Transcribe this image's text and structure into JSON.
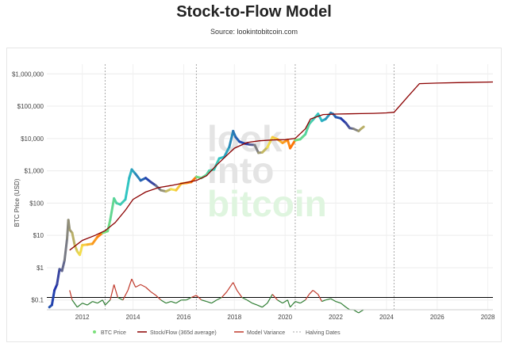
{
  "header": {
    "title": "Stock-to-Flow Model",
    "subtitle": "Source: lookintobitcoin.com"
  },
  "watermark": [
    "look",
    "into",
    "bitcoin"
  ],
  "colors": {
    "stock_flow": "#8b0000",
    "model_variance": "#c0392b",
    "variance_low": "#2e7d32",
    "halving": "#aaaaaa",
    "ref_line": "#000000",
    "price_gradient": [
      "#7be07b",
      "#2ec4c4",
      "#2233aa",
      "#f4e04d",
      "#ff6a00"
    ]
  },
  "chart_data": {
    "type": "line",
    "title": "Stock-to-Flow Model",
    "subtitle": "Source: lookintobitcoin.com",
    "ylabel": "BTC Price (USD)",
    "xlabel": "",
    "y_scale": "log",
    "ylim": [
      0.05,
      2000000
    ],
    "xlim": [
      2010.6,
      2028.2
    ],
    "x_ticks": [
      2012,
      2014,
      2016,
      2018,
      2020,
      2022,
      2024,
      2026,
      2028
    ],
    "y_ticks": [
      {
        "value": 0.1,
        "label": "$0.1"
      },
      {
        "value": 1,
        "label": "$1"
      },
      {
        "value": 10,
        "label": "$10"
      },
      {
        "value": 100,
        "label": "$100"
      },
      {
        "value": 1000,
        "label": "$1,000"
      },
      {
        "value": 10000,
        "label": "$10,000"
      },
      {
        "value": 100000,
        "label": "$100,000"
      },
      {
        "value": 1000000,
        "label": "$1,000,000"
      }
    ],
    "grid": true,
    "legend_position": "bottom",
    "reference_line": 0.12,
    "halving_dates": [
      2012.9,
      2016.5,
      2020.4,
      2024.3
    ],
    "series": [
      {
        "name": "BTC Price",
        "points": [
          [
            2010.7,
            0.06
          ],
          [
            2010.8,
            0.07
          ],
          [
            2010.9,
            0.2
          ],
          [
            2011.0,
            0.3
          ],
          [
            2011.1,
            0.9
          ],
          [
            2011.2,
            0.8
          ],
          [
            2011.3,
            1.7
          ],
          [
            2011.4,
            8
          ],
          [
            2011.45,
            30
          ],
          [
            2011.5,
            15
          ],
          [
            2011.6,
            12
          ],
          [
            2011.7,
            5
          ],
          [
            2011.8,
            3.2
          ],
          [
            2011.9,
            2.5
          ],
          [
            2012.0,
            5
          ],
          [
            2012.2,
            5.2
          ],
          [
            2012.4,
            5.5
          ],
          [
            2012.6,
            9
          ],
          [
            2012.8,
            12
          ],
          [
            2013.0,
            13.5
          ],
          [
            2013.1,
            30
          ],
          [
            2013.25,
            140
          ],
          [
            2013.35,
            100
          ],
          [
            2013.5,
            90
          ],
          [
            2013.7,
            130
          ],
          [
            2013.85,
            600
          ],
          [
            2013.95,
            1100
          ],
          [
            2014.1,
            800
          ],
          [
            2014.3,
            500
          ],
          [
            2014.5,
            600
          ],
          [
            2014.7,
            450
          ],
          [
            2014.9,
            350
          ],
          [
            2015.1,
            250
          ],
          [
            2015.3,
            230
          ],
          [
            2015.5,
            270
          ],
          [
            2015.7,
            250
          ],
          [
            2015.9,
            400
          ],
          [
            2016.1,
            420
          ],
          [
            2016.3,
            450
          ],
          [
            2016.5,
            650
          ],
          [
            2016.7,
            600
          ],
          [
            2016.9,
            750
          ],
          [
            2017.0,
            1000
          ],
          [
            2017.2,
            1100
          ],
          [
            2017.4,
            2400
          ],
          [
            2017.6,
            2700
          ],
          [
            2017.8,
            5500
          ],
          [
            2017.95,
            17000
          ],
          [
            2018.05,
            11000
          ],
          [
            2018.2,
            8000
          ],
          [
            2018.4,
            7000
          ],
          [
            2018.6,
            6500
          ],
          [
            2018.8,
            6300
          ],
          [
            2018.95,
            3600
          ],
          [
            2019.1,
            3700
          ],
          [
            2019.3,
            5300
          ],
          [
            2019.5,
            11000
          ],
          [
            2019.7,
            9500
          ],
          [
            2019.9,
            7300
          ],
          [
            2020.1,
            9000
          ],
          [
            2020.2,
            5000
          ],
          [
            2020.4,
            8800
          ],
          [
            2020.6,
            9500
          ],
          [
            2020.8,
            13500
          ],
          [
            2020.95,
            28000
          ],
          [
            2021.1,
            38000
          ],
          [
            2021.3,
            58000
          ],
          [
            2021.45,
            35000
          ],
          [
            2021.6,
            40000
          ],
          [
            2021.8,
            62000
          ],
          [
            2021.9,
            57000
          ],
          [
            2022.0,
            46000
          ],
          [
            2022.2,
            42000
          ],
          [
            2022.4,
            30000
          ],
          [
            2022.55,
            21000
          ],
          [
            2022.7,
            20000
          ],
          [
            2022.9,
            17000
          ],
          [
            2023.0,
            20000
          ],
          [
            2023.1,
            23000
          ]
        ]
      },
      {
        "name": "Stock/Flow (365d average)",
        "points": [
          [
            2011.5,
            3.5
          ],
          [
            2012.0,
            7
          ],
          [
            2012.5,
            10
          ],
          [
            2012.9,
            14
          ],
          [
            2013.3,
            25
          ],
          [
            2013.7,
            60
          ],
          [
            2014.0,
            130
          ],
          [
            2014.5,
            220
          ],
          [
            2015.0,
            300
          ],
          [
            2015.5,
            350
          ],
          [
            2016.0,
            420
          ],
          [
            2016.5,
            500
          ],
          [
            2016.9,
            700
          ],
          [
            2017.3,
            1500
          ],
          [
            2017.7,
            3000
          ],
          [
            2018.0,
            5000
          ],
          [
            2018.5,
            7500
          ],
          [
            2019.0,
            8500
          ],
          [
            2019.5,
            9000
          ],
          [
            2020.0,
            9200
          ],
          [
            2020.4,
            10000
          ],
          [
            2020.8,
            20000
          ],
          [
            2021.0,
            40000
          ],
          [
            2021.5,
            55000
          ],
          [
            2022.0,
            57000
          ],
          [
            2022.5,
            58000
          ],
          [
            2023.0,
            59000
          ],
          [
            2023.5,
            60000
          ],
          [
            2024.0,
            62000
          ],
          [
            2024.3,
            65000
          ],
          [
            2024.8,
            180000
          ],
          [
            2025.3,
            500000
          ],
          [
            2026.0,
            520000
          ],
          [
            2027.0,
            540000
          ],
          [
            2028.2,
            560000
          ]
        ]
      },
      {
        "name": "Model Variance",
        "points": [
          [
            2011.5,
            0.2
          ],
          [
            2011.6,
            0.1
          ],
          [
            2011.8,
            0.06
          ],
          [
            2012.0,
            0.08
          ],
          [
            2012.2,
            0.07
          ],
          [
            2012.4,
            0.09
          ],
          [
            2012.6,
            0.08
          ],
          [
            2012.8,
            0.1
          ],
          [
            2012.9,
            0.07
          ],
          [
            2013.1,
            0.1
          ],
          [
            2013.25,
            0.3
          ],
          [
            2013.4,
            0.12
          ],
          [
            2013.6,
            0.1
          ],
          [
            2013.8,
            0.2
          ],
          [
            2013.95,
            0.45
          ],
          [
            2014.1,
            0.25
          ],
          [
            2014.3,
            0.3
          ],
          [
            2014.5,
            0.25
          ],
          [
            2014.7,
            0.18
          ],
          [
            2014.9,
            0.14
          ],
          [
            2015.1,
            0.1
          ],
          [
            2015.3,
            0.08
          ],
          [
            2015.5,
            0.09
          ],
          [
            2015.7,
            0.08
          ],
          [
            2015.9,
            0.1
          ],
          [
            2016.1,
            0.1
          ],
          [
            2016.3,
            0.12
          ],
          [
            2016.5,
            0.14
          ],
          [
            2016.7,
            0.1
          ],
          [
            2016.9,
            0.09
          ],
          [
            2017.1,
            0.08
          ],
          [
            2017.3,
            0.1
          ],
          [
            2017.5,
            0.12
          ],
          [
            2017.7,
            0.18
          ],
          [
            2017.95,
            0.35
          ],
          [
            2018.1,
            0.2
          ],
          [
            2018.3,
            0.12
          ],
          [
            2018.5,
            0.1
          ],
          [
            2018.7,
            0.08
          ],
          [
            2018.9,
            0.07
          ],
          [
            2019.1,
            0.06
          ],
          [
            2019.3,
            0.08
          ],
          [
            2019.5,
            0.15
          ],
          [
            2019.7,
            0.1
          ],
          [
            2019.9,
            0.08
          ],
          [
            2020.1,
            0.1
          ],
          [
            2020.2,
            0.06
          ],
          [
            2020.4,
            0.09
          ],
          [
            2020.6,
            0.08
          ],
          [
            2020.8,
            0.1
          ],
          [
            2020.95,
            0.15
          ],
          [
            2021.1,
            0.2
          ],
          [
            2021.3,
            0.15
          ],
          [
            2021.45,
            0.09
          ],
          [
            2021.6,
            0.1
          ],
          [
            2021.8,
            0.11
          ],
          [
            2022.0,
            0.09
          ],
          [
            2022.2,
            0.08
          ],
          [
            2022.4,
            0.06
          ],
          [
            2022.55,
            0.05
          ],
          [
            2022.7,
            0.05
          ],
          [
            2022.9,
            0.04
          ],
          [
            2023.0,
            0.045
          ],
          [
            2023.1,
            0.05
          ]
        ]
      },
      {
        "name": "Halving Dates",
        "points": []
      }
    ]
  }
}
